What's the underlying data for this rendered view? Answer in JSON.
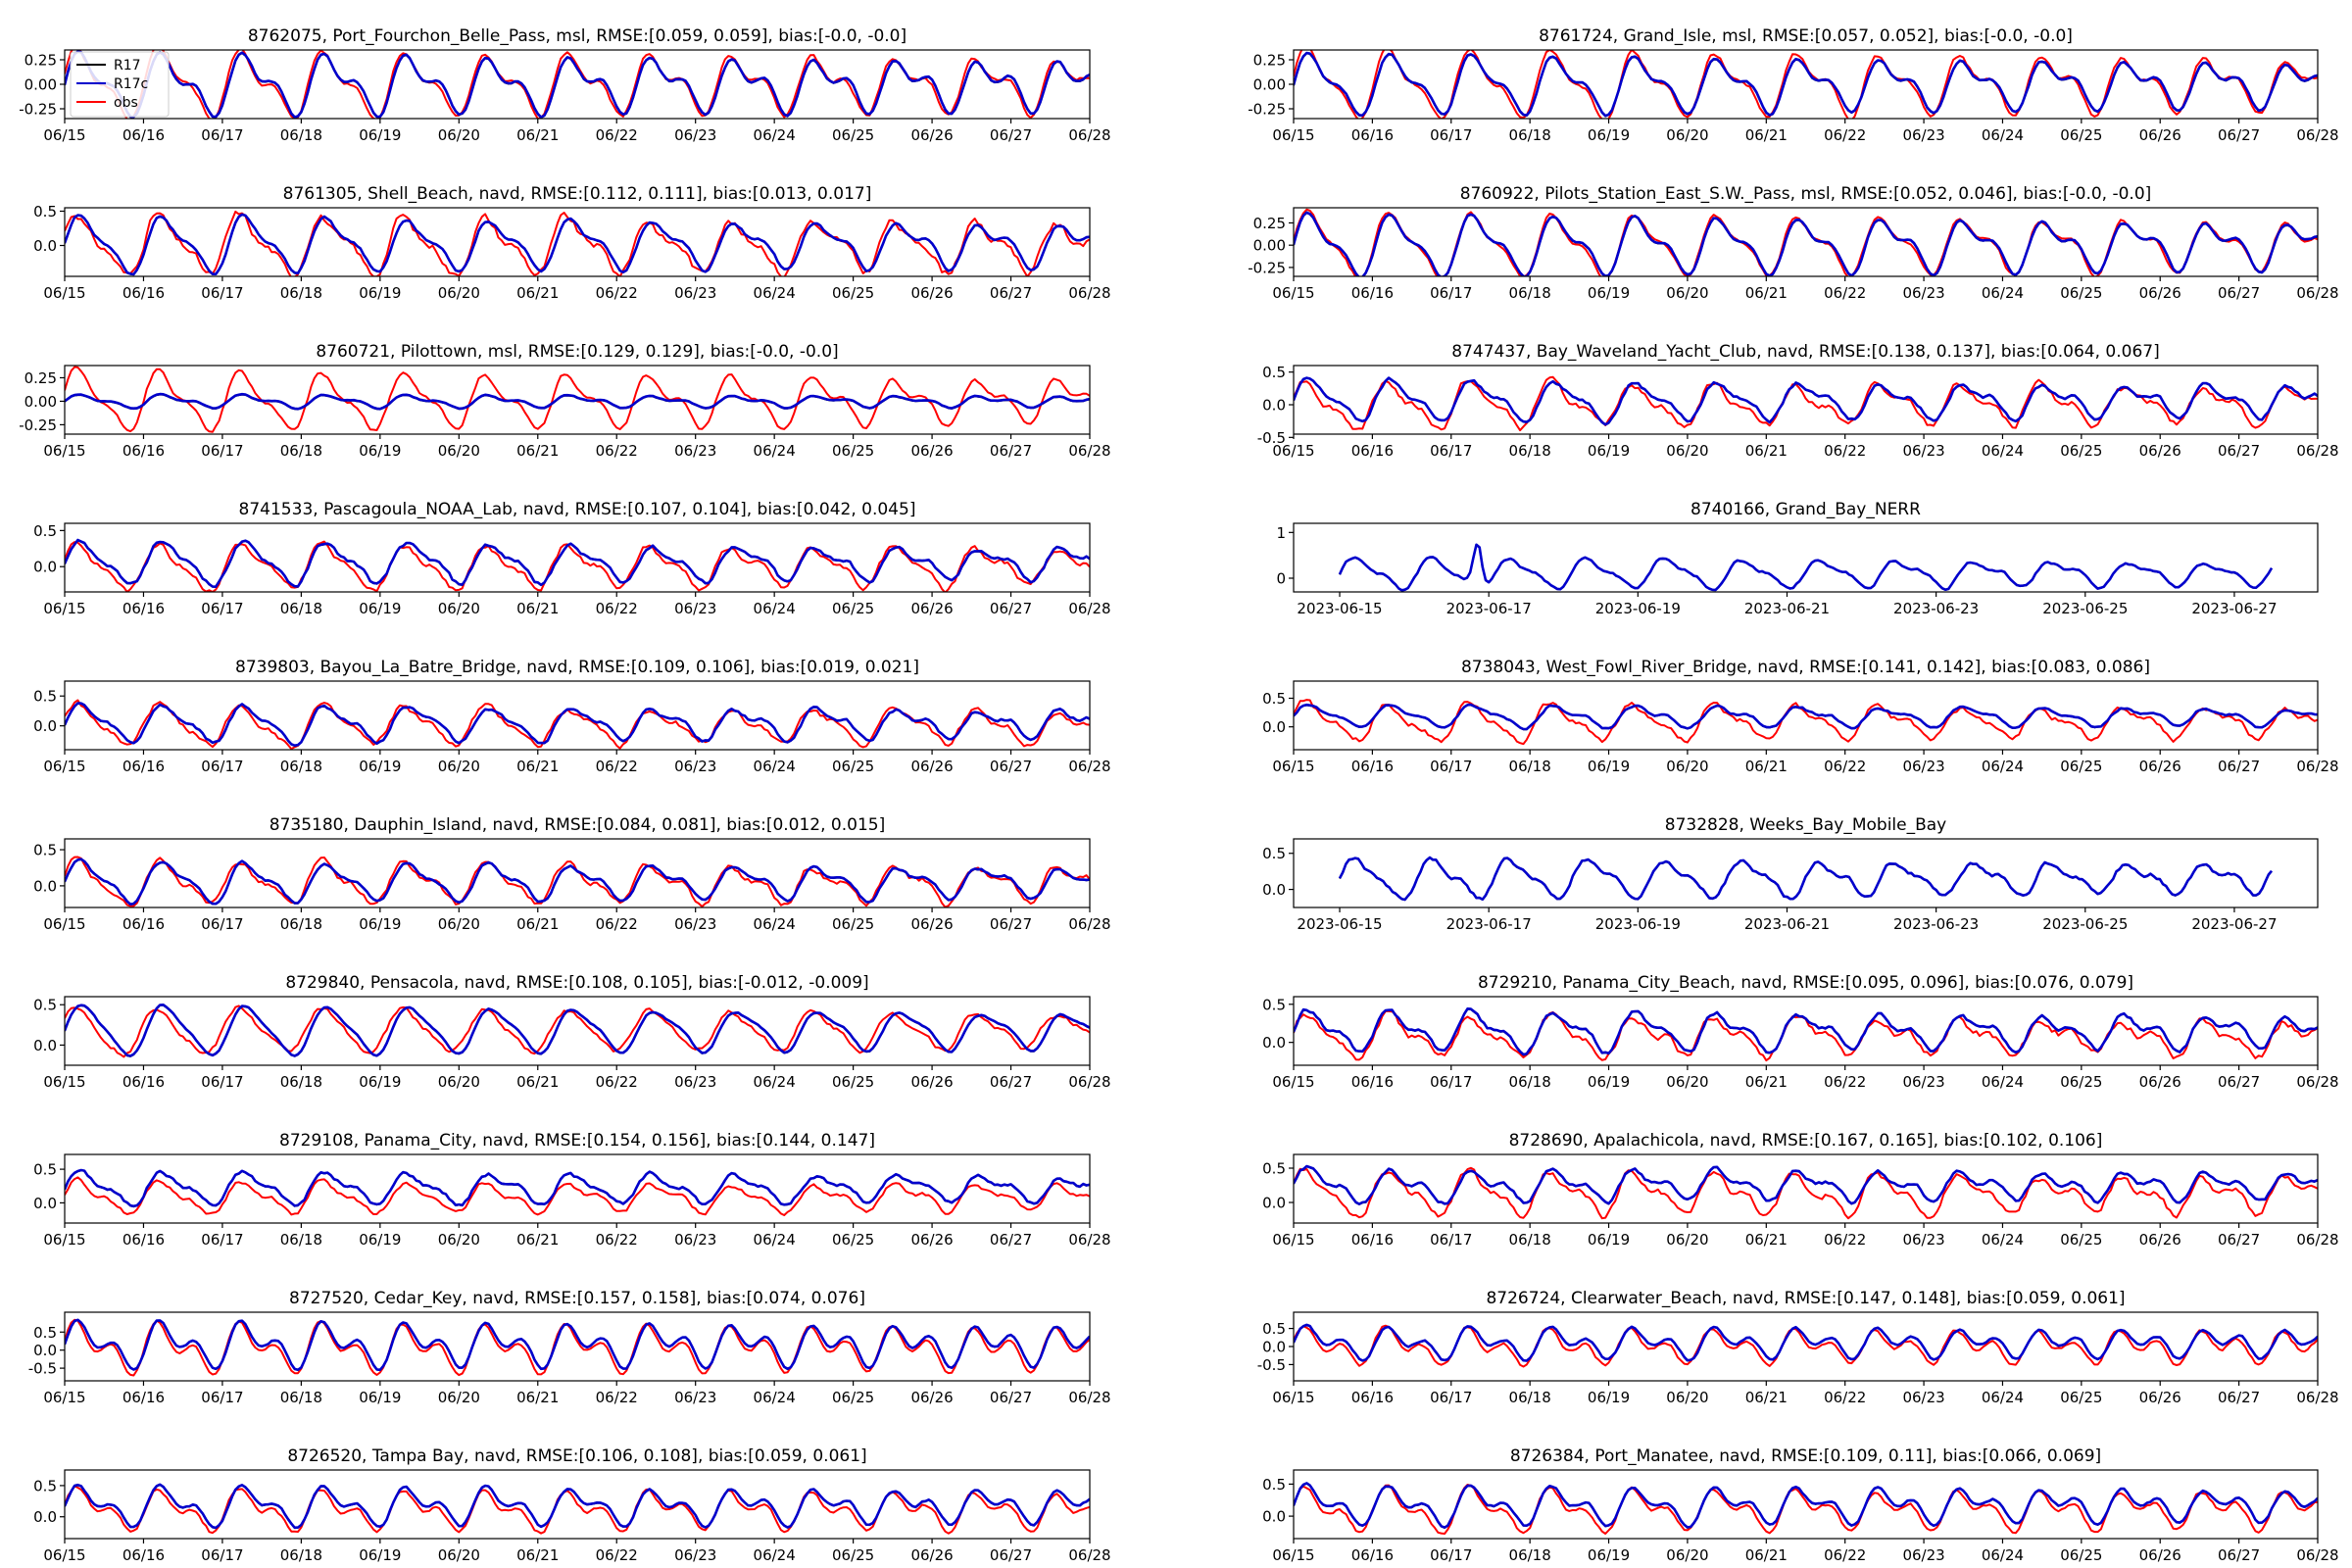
{
  "figure": {
    "legend": [
      {
        "label": "R17",
        "color": "#000000"
      },
      {
        "label": "R17c",
        "color": "#0000cc"
      },
      {
        "label": "obs",
        "color": "#ff0000"
      }
    ],
    "date_ticks": [
      "06/15",
      "06/16",
      "06/17",
      "06/18",
      "06/19",
      "06/20",
      "06/21",
      "06/22",
      "06/23",
      "06/24",
      "06/25",
      "06/26",
      "06/27",
      "06/28"
    ],
    "iso_ticks": [
      "2023-06-15",
      "2023-06-17",
      "2023-06-19",
      "2023-06-21",
      "2023-06-23",
      "2023-06-25",
      "2023-06-27"
    ]
  },
  "chart_data": [
    {
      "type": "line",
      "title": "8762075, Port_Fourchon_Belle_Pass, msl, RMSE:[0.059, 0.059], bias:[-0.0, -0.0]",
      "ylim": [
        -0.35,
        0.35
      ],
      "yticks": [
        "0.25",
        "0.00",
        "-0.25"
      ],
      "ytick_values": [
        0.25,
        0,
        -0.25
      ],
      "legend": true,
      "model": {
        "offset": 0,
        "a1": 0.26,
        "a2": 0.13,
        "phase": 0.0,
        "noise": 0.01
      },
      "obs": {
        "offset": 0,
        "a1": 0.3,
        "a2": 0.13,
        "phase": 0.2,
        "noise": 0.02
      }
    },
    {
      "type": "line",
      "title": "8761724, Grand_Isle, msl, RMSE:[0.057, 0.052], bias:[-0.0, -0.0]",
      "ylim": [
        -0.35,
        0.35
      ],
      "yticks": [
        "0.25",
        "0.00",
        "-0.25"
      ],
      "ytick_values": [
        0.25,
        0,
        -0.25
      ],
      "model": {
        "offset": 0,
        "a1": 0.26,
        "a2": 0.11,
        "phase": 0.0,
        "noise": 0.01
      },
      "obs": {
        "offset": 0,
        "a1": 0.31,
        "a2": 0.12,
        "phase": 0.15,
        "noise": 0.02
      }
    },
    {
      "type": "line",
      "title": "8761305, Shell_Beach, navd, RMSE:[0.112, 0.111], bias:[0.013, 0.017]",
      "ylim": [
        -0.45,
        0.55
      ],
      "yticks": [
        "0.5",
        "0.0"
      ],
      "ytick_values": [
        0.5,
        0
      ],
      "model": {
        "offset": 0.02,
        "a1": 0.37,
        "a2": 0.13,
        "phase": 0.0,
        "noise": 0.02
      },
      "obs": {
        "offset": 0.0,
        "a1": 0.4,
        "a2": 0.14,
        "phase": 0.35,
        "noise": 0.06
      }
    },
    {
      "type": "line",
      "title": "8760922, Pilots_Station_East_S.W._Pass, msl, RMSE:[0.052, 0.046], bias:[-0.0, -0.0]",
      "ylim": [
        -0.35,
        0.42
      ],
      "yticks": [
        "0.25",
        "0.00",
        "-0.25"
      ],
      "ytick_values": [
        0.25,
        0,
        -0.25
      ],
      "model": {
        "offset": 0,
        "a1": 0.3,
        "a2": 0.12,
        "phase": 0.0,
        "noise": 0.01
      },
      "obs": {
        "offset": 0,
        "a1": 0.33,
        "a2": 0.12,
        "phase": 0.1,
        "noise": 0.02
      }
    },
    {
      "type": "line",
      "title": "8760721, Pilottown, msl, RMSE:[0.129, 0.129], bias:[-0.0, -0.0]",
      "ylim": [
        -0.35,
        0.38
      ],
      "yticks": [
        "0.25",
        "0.00",
        "-0.25"
      ],
      "ytick_values": [
        0.25,
        0,
        -0.25
      ],
      "model": {
        "offset": 0,
        "a1": 0.06,
        "a2": 0.03,
        "phase": 0.0,
        "noise": 0.005
      },
      "obs": {
        "offset": 0,
        "a1": 0.28,
        "a2": 0.1,
        "phase": 0.3,
        "noise": 0.02
      }
    },
    {
      "type": "line",
      "title": "8747437, Bay_Waveland_Yacht_Club, navd, RMSE:[0.138, 0.137], bias:[0.064, 0.067]",
      "ylim": [
        -0.45,
        0.6
      ],
      "yticks": [
        "0.5",
        "0.0",
        "-0.5"
      ],
      "ytick_values": [
        0.5,
        0,
        -0.5
      ],
      "model": {
        "offset": 0.07,
        "a1": 0.27,
        "a2": 0.1,
        "phase": 0.0,
        "noise": 0.03
      },
      "obs": {
        "offset": 0.0,
        "a1": 0.32,
        "a2": 0.12,
        "phase": 0.3,
        "noise": 0.05
      }
    },
    {
      "type": "line",
      "title": "8741533, Pascagoula_NOAA_Lab, navd, RMSE:[0.107, 0.104], bias:[0.042, 0.045]",
      "ylim": [
        -0.35,
        0.6
      ],
      "yticks": [
        "0.5",
        "0.0"
      ],
      "ytick_values": [
        0.5,
        0
      ],
      "model": {
        "offset": 0.05,
        "a1": 0.27,
        "a2": 0.09,
        "phase": 0.0,
        "noise": 0.03
      },
      "obs": {
        "offset": 0.0,
        "a1": 0.3,
        "a2": 0.1,
        "phase": 0.3,
        "noise": 0.04
      }
    },
    {
      "type": "line",
      "title": "8740166, Grand_Bay_NERR",
      "ylim": [
        -0.3,
        1.2
      ],
      "yticks": [
        "1",
        "0"
      ],
      "ytick_values": [
        1,
        0
      ],
      "iso": true,
      "model": {
        "offset": 0.1,
        "a1": 0.3,
        "a2": 0.1,
        "phase": 0.0,
        "noise": 0.03,
        "spike": 1.0
      }
    },
    {
      "type": "line",
      "title": "8739803, Bayou_La_Batre_Bridge, navd, RMSE:[0.109, 0.106], bias:[0.019, 0.021]",
      "ylim": [
        -0.4,
        0.75
      ],
      "yticks": [
        "0.5",
        "0.0"
      ],
      "ytick_values": [
        0.5,
        0
      ],
      "model": {
        "offset": 0.04,
        "a1": 0.28,
        "a2": 0.1,
        "phase": 0.0,
        "noise": 0.03
      },
      "obs": {
        "offset": 0.0,
        "a1": 0.32,
        "a2": 0.1,
        "phase": 0.3,
        "noise": 0.05
      }
    },
    {
      "type": "line",
      "title": "8738043, West_Fowl_River_Bridge, navd, RMSE:[0.141, 0.142], bias:[0.083, 0.086]",
      "ylim": [
        -0.4,
        0.8
      ],
      "yticks": [
        "0.5",
        "0.0"
      ],
      "ytick_values": [
        0.5,
        0
      ],
      "model": {
        "offset": 0.18,
        "a1": 0.18,
        "a2": 0.07,
        "phase": 0.0,
        "noise": 0.02
      },
      "obs": {
        "offset": 0.08,
        "a1": 0.3,
        "a2": 0.1,
        "phase": 0.3,
        "noise": 0.05
      }
    },
    {
      "type": "line",
      "title": "8735180, Dauphin_Island, navd, RMSE:[0.084, 0.081], bias:[0.012, 0.015]",
      "ylim": [
        -0.3,
        0.65
      ],
      "yticks": [
        "0.5",
        "0.0"
      ],
      "ytick_values": [
        0.5,
        0
      ],
      "model": {
        "offset": 0.05,
        "a1": 0.25,
        "a2": 0.09,
        "phase": 0.0,
        "noise": 0.02
      },
      "obs": {
        "offset": 0.03,
        "a1": 0.28,
        "a2": 0.1,
        "phase": 0.25,
        "noise": 0.04
      }
    },
    {
      "type": "line",
      "title": "8732828, Weeks_Bay_Mobile_Bay",
      "ylim": [
        -0.25,
        0.7
      ],
      "yticks": [
        "0.5",
        "0.0"
      ],
      "ytick_values": [
        0.5,
        0
      ],
      "iso": true,
      "model": {
        "offset": 0.15,
        "a1": 0.25,
        "a2": 0.08,
        "phase": 0.0,
        "noise": 0.03
      }
    },
    {
      "type": "line",
      "title": "8729840, Pensacola, navd, RMSE:[0.108, 0.105], bias:[-0.012, -0.009]",
      "ylim": [
        -0.25,
        0.6
      ],
      "yticks": [
        "0.5",
        "0.0"
      ],
      "ytick_values": [
        0.5,
        0
      ],
      "model": {
        "offset": 0.18,
        "a1": 0.3,
        "a2": 0.06,
        "phase": 0.0,
        "noise": 0.01
      },
      "obs": {
        "offset": 0.18,
        "a1": 0.28,
        "a2": 0.05,
        "phase": 0.5,
        "noise": 0.03
      }
    },
    {
      "type": "line",
      "title": "8729210, Panama_City_Beach, navd, RMSE:[0.095, 0.096], bias:[0.076, 0.079]",
      "ylim": [
        -0.3,
        0.6
      ],
      "yticks": [
        "0.5",
        "0.0"
      ],
      "ytick_values": [
        0.5,
        0
      ],
      "model": {
        "offset": 0.15,
        "a1": 0.23,
        "a2": 0.1,
        "phase": 0.0,
        "noise": 0.03
      },
      "obs": {
        "offset": 0.08,
        "a1": 0.25,
        "a2": 0.1,
        "phase": 0.2,
        "noise": 0.05
      }
    },
    {
      "type": "line",
      "title": "8729108, Panama_City, navd, RMSE:[0.154, 0.156], bias:[0.144, 0.147]",
      "ylim": [
        -0.3,
        0.72
      ],
      "yticks": [
        "0.5",
        "0.0"
      ],
      "ytick_values": [
        0.5,
        0
      ],
      "model": {
        "offset": 0.22,
        "a1": 0.22,
        "a2": 0.08,
        "phase": 0.0,
        "noise": 0.03
      },
      "obs": {
        "offset": 0.08,
        "a1": 0.22,
        "a2": 0.08,
        "phase": 0.2,
        "noise": 0.03
      }
    },
    {
      "type": "line",
      "title": "8728690, Apalachicola, navd, RMSE:[0.167, 0.165], bias:[0.102, 0.106]",
      "ylim": [
        -0.3,
        0.7
      ],
      "yticks": [
        "0.5",
        "0.0"
      ],
      "ytick_values": [
        0.5,
        0
      ],
      "model": {
        "offset": 0.25,
        "a1": 0.2,
        "a2": 0.1,
        "phase": 0.0,
        "noise": 0.03
      },
      "obs": {
        "offset": 0.12,
        "a1": 0.28,
        "a2": 0.12,
        "phase": 0.3,
        "noise": 0.05
      }
    },
    {
      "type": "line",
      "title": "8727520, Cedar_Key, navd, RMSE:[0.157, 0.158], bias:[0.074, 0.076]",
      "ylim": [
        -0.85,
        1.05
      ],
      "yticks": [
        "0.5",
        "0.0",
        "-0.5"
      ],
      "ytick_values": [
        0.5,
        0,
        -0.5
      ],
      "model": {
        "offset": 0.15,
        "a1": 0.45,
        "a2": 0.35,
        "phase": 0.0,
        "noise": 0.02
      },
      "obs": {
        "offset": 0.05,
        "a1": 0.5,
        "a2": 0.38,
        "phase": 0.2,
        "noise": 0.03
      }
    },
    {
      "type": "line",
      "title": "8726724, Clearwater_Beach, navd, RMSE:[0.147, 0.148], bias:[0.059, 0.061]",
      "ylim": [
        -0.95,
        0.95
      ],
      "yticks": [
        "0.5",
        "0.0",
        "-0.5"
      ],
      "ytick_values": [
        0.5,
        0,
        -0.5
      ],
      "model": {
        "offset": 0.1,
        "a1": 0.3,
        "a2": 0.25,
        "phase": 0.0,
        "noise": 0.03
      },
      "obs": {
        "offset": 0.0,
        "a1": 0.35,
        "a2": 0.28,
        "phase": 0.25,
        "noise": 0.05
      }
    },
    {
      "type": "line",
      "title": "8726520, Tampa Bay, navd, RMSE:[0.106, 0.108], bias:[0.059, 0.061]",
      "ylim": [
        -0.35,
        0.75
      ],
      "yticks": [
        "0.5",
        "0.0"
      ],
      "ytick_values": [
        0.5,
        0
      ],
      "model": {
        "offset": 0.17,
        "a1": 0.25,
        "a2": 0.15,
        "phase": 0.0,
        "noise": 0.02
      },
      "obs": {
        "offset": 0.1,
        "a1": 0.27,
        "a2": 0.16,
        "phase": 0.2,
        "noise": 0.03
      }
    },
    {
      "type": "line",
      "title": "8726384, Port_Manatee, navd, RMSE:[0.109, 0.11], bias:[0.066, 0.069]",
      "ylim": [
        -0.35,
        0.72
      ],
      "yticks": [
        "0.5",
        "0.0"
      ],
      "ytick_values": [
        0.5,
        0
      ],
      "model": {
        "offset": 0.17,
        "a1": 0.23,
        "a2": 0.15,
        "phase": 0.0,
        "noise": 0.02
      },
      "obs": {
        "offset": 0.1,
        "a1": 0.27,
        "a2": 0.16,
        "phase": 0.2,
        "noise": 0.03
      }
    }
  ]
}
